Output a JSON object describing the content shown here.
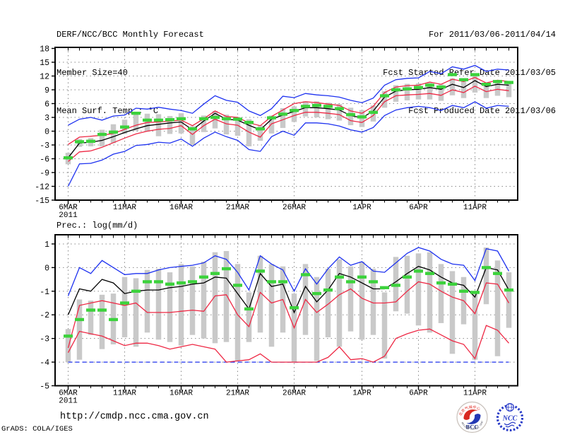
{
  "header": {
    "title": "DERF/NCC/BCC Monthly Forecast",
    "member_size": "Member Size=40",
    "variable_label": "Mean Surf. Temp.: °C",
    "for_range": "For 2011/03/06-2011/04/14",
    "refer_date": "Fcst Started Refer Date 2011/03/05",
    "produced_date": "Fcst Produced Date 2011/03/06"
  },
  "footer": {
    "url": "http://cmdp.ncc.cma.gov.cn",
    "grads_credit": "GrADS: COLA/IGES",
    "bcc_label": "BCC",
    "bcc_ring_top": "北京气候中心",
    "bcc_ring_bottom": "BEIJING CLIMATE CENTER",
    "ncc_label": "NCC"
  },
  "colors": {
    "blue": "#1e32f0",
    "red": "#ee2844",
    "green": "#3cd23c",
    "black": "#000000",
    "bar_gray": "#c9c9c9",
    "grid_gray": "#8a8a8a",
    "frame_black": "#000000"
  },
  "chart_data": [
    {
      "type": "line",
      "title": "Mean Surf. Temp.: °C",
      "xlabel": "",
      "ylabel": "",
      "ylim": [
        -15,
        18
      ],
      "grid": true,
      "legend": "none",
      "x_start_date": "2011-03-06",
      "x_end_date": "2011-04-14",
      "y_ticks": [
        18,
        15,
        12,
        9,
        6,
        3,
        0,
        -3,
        -6,
        -9,
        -12,
        -15
      ],
      "x_ticks": [
        {
          "day": 0,
          "label": "6MAR",
          "year": "2011"
        },
        {
          "day": 5,
          "label": "11MAR"
        },
        {
          "day": 10,
          "label": "16MAR"
        },
        {
          "day": 15,
          "label": "21MAR"
        },
        {
          "day": 20,
          "label": "26MAR"
        },
        {
          "day": 26,
          "label": "1APR"
        },
        {
          "day": 31,
          "label": "6APR"
        },
        {
          "day": 36,
          "label": "11APR"
        }
      ],
      "series": [
        {
          "name": "ensemble-spread-bar",
          "kind": "bar",
          "color_key": "bar_gray",
          "hi": [
            -4.7,
            -1.7,
            -1.5,
            0.3,
            1.5,
            2.5,
            4.2,
            3.8,
            3.7,
            3.3,
            3.9,
            1.1,
            3.4,
            4.4,
            3.6,
            3.1,
            2.6,
            1.3,
            3.4,
            5.0,
            5.4,
            6.5,
            6.5,
            6.2,
            5.9,
            5.1,
            4.6,
            5.6,
            8.7,
            10.0,
            10.3,
            10.4,
            10.7,
            10.2,
            11.5,
            10.9,
            12.1,
            10.5,
            11.1,
            10.8
          ],
          "lo": [
            -7.2,
            -3.4,
            -3.3,
            -3.3,
            -2.6,
            -0.6,
            0.1,
            -0.1,
            -1.1,
            -0.6,
            -0.5,
            -3.0,
            -0.2,
            0.6,
            -0.7,
            -1.0,
            -3.3,
            -2.1,
            -0.5,
            0.7,
            2.0,
            3.2,
            3.0,
            2.6,
            2.3,
            1.3,
            0.9,
            2.1,
            5.1,
            6.4,
            6.7,
            6.9,
            6.9,
            6.6,
            7.8,
            7.2,
            8.4,
            7.2,
            7.7,
            7.4
          ]
        },
        {
          "name": "ensemble-min",
          "kind": "line",
          "color_key": "blue",
          "dashed": false,
          "values": [
            -12.0,
            -7.1,
            -7.0,
            -6.3,
            -5.0,
            -4.4,
            -3.1,
            -2.9,
            -2.4,
            -2.6,
            -1.7,
            -3.3,
            -1.5,
            -0.2,
            -1.2,
            -2.0,
            -4.0,
            -4.4,
            -1.2,
            0.0,
            -0.9,
            1.8,
            1.8,
            1.6,
            1.1,
            0.3,
            -0.2,
            0.8,
            3.4,
            4.6,
            5.1,
            5.4,
            5.1,
            4.5,
            5.6,
            5.1,
            6.4,
            5.0,
            5.6,
            5.4
          ]
        },
        {
          "name": "ensemble-max",
          "kind": "line",
          "color_key": "blue",
          "dashed": false,
          "values": [
            1.3,
            2.6,
            3.0,
            2.4,
            3.3,
            3.5,
            5.0,
            4.8,
            5.2,
            4.8,
            4.5,
            3.9,
            5.9,
            7.7,
            6.7,
            6.3,
            4.4,
            3.4,
            4.9,
            7.6,
            7.3,
            8.2,
            7.9,
            7.7,
            7.4,
            6.7,
            6.2,
            7.2,
            10.0,
            11.2,
            11.5,
            11.6,
            13.0,
            12.5,
            14.0,
            13.5,
            14.3,
            13.0,
            13.5,
            13.3
          ]
        },
        {
          "name": "lower-quartile",
          "kind": "line",
          "color_key": "red",
          "dashed": false,
          "values": [
            -6.6,
            -4.5,
            -4.3,
            -3.5,
            -2.5,
            -1.5,
            -0.6,
            0.0,
            0.4,
            0.6,
            1.2,
            -0.7,
            1.2,
            2.6,
            1.6,
            1.3,
            -0.2,
            -1.3,
            1.6,
            2.5,
            3.4,
            4.1,
            4.1,
            3.9,
            3.6,
            2.3,
            1.9,
            3.4,
            6.4,
            7.7,
            7.9,
            8.0,
            8.2,
            7.8,
            9.0,
            8.4,
            9.8,
            8.6,
            9.1,
            8.8
          ]
        },
        {
          "name": "upper-quartile",
          "kind": "line",
          "color_key": "red",
          "dashed": false,
          "values": [
            -2.9,
            -1.3,
            -1.1,
            -0.9,
            -0.5,
            0.4,
            1.3,
            1.9,
            2.0,
            2.2,
            2.4,
            1.2,
            2.7,
            4.4,
            3.2,
            3.0,
            1.8,
            1.2,
            3.2,
            4.6,
            6.0,
            6.4,
            6.2,
            5.9,
            5.6,
            4.4,
            3.9,
            5.4,
            8.4,
            9.6,
            9.9,
            10.0,
            10.7,
            10.2,
            11.3,
            10.8,
            11.7,
            10.5,
            11.1,
            10.8
          ]
        },
        {
          "name": "ensemble-mean",
          "kind": "line",
          "color_key": "black",
          "dashed": false,
          "values": [
            -5.8,
            -2.6,
            -2.4,
            -2.0,
            -1.2,
            -0.3,
            0.5,
            1.2,
            1.5,
            1.8,
            2.0,
            0.3,
            2.2,
            3.9,
            2.6,
            2.4,
            1.3,
            0.3,
            2.6,
            3.5,
            4.3,
            5.1,
            5.1,
            4.9,
            4.6,
            3.4,
            2.9,
            4.4,
            7.4,
            8.7,
            9.0,
            9.1,
            9.5,
            9.1,
            10.2,
            9.5,
            11.0,
            9.7,
            10.2,
            10.0
          ]
        },
        {
          "name": "observation-dash",
          "kind": "dash",
          "color_key": "green",
          "values": [
            -5.8,
            -2.3,
            -2.2,
            -0.7,
            -0.2,
            0.9,
            3.9,
            2.4,
            2.4,
            2.5,
            2.7,
            0.5,
            2.7,
            3.0,
            2.7,
            2.6,
            1.9,
            0.5,
            2.9,
            3.7,
            4.5,
            5.4,
            5.6,
            5.4,
            4.9,
            3.6,
            3.1,
            4.1,
            7.7,
            9.0,
            9.2,
            9.5,
            10.0,
            9.6,
            12.3,
            11.2,
            12.3,
            10.2,
            10.8,
            10.6
          ]
        }
      ]
    },
    {
      "type": "line",
      "title": "Prec.: log(mm/d)",
      "xlabel": "",
      "ylabel": "",
      "ylim": [
        -5,
        1.4
      ],
      "grid": true,
      "legend": "none",
      "x_start_date": "2011-03-06",
      "x_end_date": "2011-04-14",
      "y_ticks": [
        1,
        0,
        -1,
        -2,
        -3,
        -4,
        -5
      ],
      "x_ticks": [
        {
          "day": 0,
          "label": "6MAR",
          "year": "2011"
        },
        {
          "day": 5,
          "label": "11MAR"
        },
        {
          "day": 10,
          "label": "16MAR"
        },
        {
          "day": 15,
          "label": "21MAR"
        },
        {
          "day": 20,
          "label": "26MAR"
        },
        {
          "day": 26,
          "label": "1APR"
        },
        {
          "day": 31,
          "label": "6APR"
        },
        {
          "day": 36,
          "label": "11APR"
        }
      ],
      "series": [
        {
          "name": "ensemble-spread-bar",
          "kind": "bar",
          "color_key": "bar_gray",
          "hi": [
            -2.6,
            -1.35,
            -1.4,
            -1.15,
            -1.1,
            -0.4,
            -0.45,
            -0.1,
            -0.05,
            -0.2,
            0.15,
            0.05,
            0.25,
            0.65,
            0.7,
            0.15,
            -1.05,
            0.5,
            0.15,
            0.05,
            -1.1,
            0.15,
            -0.4,
            -0.05,
            0.35,
            0.05,
            0.25,
            -0.05,
            -1.05,
            0.45,
            0.5,
            0.6,
            0.65,
            0.15,
            -0.15,
            -0.4,
            -1.05,
            0.85,
            0.3,
            -0.2
          ],
          "lo": [
            -4.0,
            -3.9,
            -2.85,
            -3.45,
            -3.25,
            -2.95,
            -3.35,
            -2.75,
            -3.05,
            -3.15,
            -3.3,
            -2.85,
            -3.0,
            -3.2,
            -3.15,
            -3.95,
            -3.15,
            -2.75,
            -3.35,
            -2.75,
            -4.0,
            -2.85,
            -3.95,
            -2.95,
            -3.35,
            -2.7,
            -3.05,
            -2.85,
            -3.85,
            -1.85,
            -1.95,
            -2.45,
            -2.75,
            -2.35,
            -3.65,
            -2.4,
            -3.9,
            -1.55,
            -3.75,
            -2.55
          ]
        },
        {
          "name": "ensemble-min",
          "kind": "line",
          "color_key": "blue",
          "dashed": true,
          "values": [
            -4,
            -4,
            -4,
            -4,
            -4,
            -4,
            -4,
            -4,
            -4,
            -4,
            -4,
            -4,
            -4,
            -4,
            -4,
            -4,
            -4,
            -4,
            -4,
            -4,
            -4,
            -4,
            -4,
            -4,
            -4,
            -4,
            -4,
            -4,
            -4,
            -4,
            -4,
            -4,
            -4,
            -4,
            -4,
            -4,
            -4,
            -4,
            -4,
            -4
          ]
        },
        {
          "name": "ensemble-max",
          "kind": "line",
          "color_key": "blue",
          "dashed": false,
          "values": [
            -1.2,
            0.0,
            -0.25,
            0.3,
            0.0,
            -0.3,
            -0.25,
            -0.25,
            -0.1,
            0.0,
            0.05,
            0.1,
            0.2,
            0.5,
            0.35,
            -0.2,
            -0.95,
            0.5,
            0.15,
            -0.1,
            -1.0,
            -0.05,
            -0.7,
            -0.05,
            0.45,
            0.1,
            0.25,
            -0.15,
            -0.2,
            0.2,
            0.6,
            0.85,
            0.7,
            0.35,
            0.15,
            0.1,
            -0.55,
            0.8,
            0.7,
            -0.15
          ]
        },
        {
          "name": "lower-quartile",
          "kind": "line",
          "color_key": "red",
          "dashed": false,
          "values": [
            -3.6,
            -2.7,
            -2.8,
            -2.9,
            -3.1,
            -3.3,
            -3.2,
            -3.2,
            -3.3,
            -3.45,
            -3.35,
            -3.25,
            -3.35,
            -3.45,
            -4.0,
            -3.95,
            -3.9,
            -3.65,
            -4.0,
            -4.0,
            -4.0,
            -4.0,
            -4.0,
            -3.8,
            -3.35,
            -3.9,
            -3.85,
            -4.0,
            -3.75,
            -3.0,
            -2.8,
            -2.65,
            -2.6,
            -2.85,
            -3.1,
            -3.25,
            -3.85,
            -2.45,
            -2.65,
            -3.2
          ]
        },
        {
          "name": "upper-quartile",
          "kind": "line",
          "color_key": "red",
          "dashed": false,
          "values": [
            -3.4,
            -1.6,
            -1.5,
            -1.4,
            -1.5,
            -1.6,
            -1.5,
            -1.9,
            -1.9,
            -1.9,
            -1.85,
            -1.8,
            -1.85,
            -1.2,
            -1.15,
            -2.0,
            -2.5,
            -1.05,
            -1.5,
            -1.35,
            -2.55,
            -1.35,
            -1.9,
            -1.55,
            -1.15,
            -0.9,
            -1.3,
            -1.5,
            -1.5,
            -1.45,
            -1.0,
            -0.6,
            -0.7,
            -1.0,
            -1.25,
            -1.4,
            -1.95,
            -0.65,
            -0.7,
            -1.5
          ]
        },
        {
          "name": "ensemble-mean",
          "kind": "line",
          "color_key": "black",
          "dashed": false,
          "values": [
            -2.0,
            -0.9,
            -1.0,
            -0.5,
            -0.65,
            -1.1,
            -1.0,
            -0.95,
            -0.95,
            -0.85,
            -0.8,
            -0.7,
            -0.65,
            -0.4,
            -0.45,
            -1.1,
            -1.75,
            -0.25,
            -0.8,
            -0.7,
            -1.9,
            -0.8,
            -1.45,
            -0.95,
            -0.25,
            -0.4,
            -0.65,
            -0.9,
            -0.9,
            -0.6,
            -0.25,
            0.05,
            -0.1,
            -0.4,
            -0.65,
            -0.75,
            -1.25,
            0.0,
            -0.1,
            -0.95
          ]
        },
        {
          "name": "observation-dash",
          "kind": "dash",
          "color_key": "green",
          "values": [
            -2.9,
            -2.2,
            -1.8,
            -1.8,
            -2.2,
            -1.5,
            -1.0,
            -0.6,
            -0.6,
            -0.7,
            -0.65,
            -0.6,
            -0.4,
            -0.25,
            -0.05,
            -0.75,
            -1.75,
            -0.15,
            -0.6,
            -0.6,
            -1.7,
            -0.3,
            -1.1,
            -0.95,
            -0.4,
            -0.6,
            -0.4,
            -0.6,
            -0.85,
            -0.75,
            -0.4,
            -0.15,
            -0.25,
            -0.65,
            -0.7,
            -1.0,
            -1.05,
            0.0,
            -0.25,
            -0.95
          ]
        }
      ]
    }
  ]
}
